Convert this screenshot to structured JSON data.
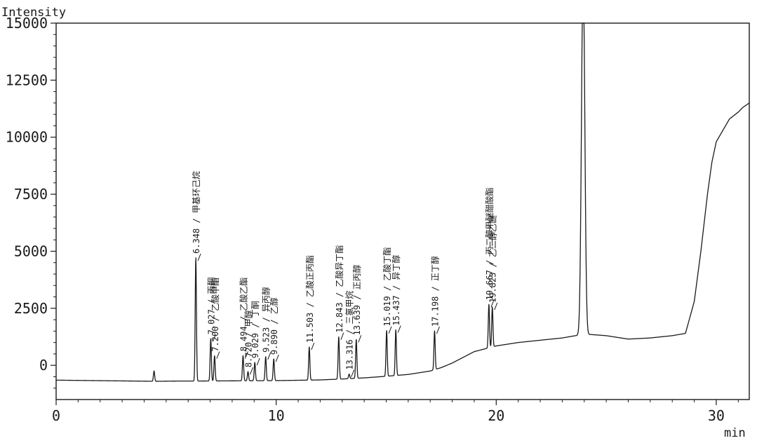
{
  "chart_data": {
    "type": "line",
    "xlabel": "min",
    "ylabel": "Intensity",
    "xlim": [
      0,
      31.5
    ],
    "ylim": [
      -1500,
      15000
    ],
    "x_ticks": [
      0,
      10,
      20,
      30
    ],
    "x_tick_labels": [
      "0",
      "10",
      "20",
      "30"
    ],
    "y_ticks": [
      0,
      2500,
      5000,
      7500,
      10000,
      12500,
      15000
    ],
    "y_tick_labels": [
      "0",
      "2500",
      "5000",
      "7500",
      "10000",
      "12500",
      "15000"
    ],
    "baseline": {
      "x": [
        0,
        4.5,
        5.5,
        6.3,
        8,
        10,
        12,
        13,
        14,
        15,
        16,
        17,
        17.5,
        18,
        18.5,
        19,
        20,
        21,
        22,
        23,
        23.6,
        24.3,
        25,
        26,
        27,
        28,
        28.6,
        29,
        29.3,
        29.6,
        29.8,
        30,
        30.3,
        30.6,
        31,
        31.2,
        31.5
      ],
      "y": [
        -650,
        -700,
        -690,
        -690,
        -680,
        -670,
        -640,
        -600,
        -550,
        -480,
        -400,
        -250,
        -100,
        100,
        350,
        600,
        850,
        1000,
        1100,
        1200,
        1300,
        1350,
        1300,
        1150,
        1200,
        1300,
        1400,
        2800,
        5000,
        7500,
        8900,
        9800,
        10300,
        10800,
        11100,
        11300,
        11500
      ]
    },
    "peaks": [
      {
        "rt": 4.45,
        "height": 450,
        "label": ""
      },
      {
        "rt": 6.348,
        "height": 5400,
        "label": "6.348 / 甲基环己烷"
      },
      {
        "rt": 7.027,
        "height": 1850,
        "label": "7.027 / 丙酮"
      },
      {
        "rt": 7.2,
        "height": 1100,
        "label": "7.200 / 乙酸甲酯"
      },
      {
        "rt": 8.494,
        "height": 1100,
        "label": "8.494 / 乙酸乙酯"
      },
      {
        "rt": 8.72,
        "height": 400,
        "label": "8.720 / 甲醇"
      },
      {
        "rt": 9.029,
        "height": 800,
        "label": "9.029 / 丁酮"
      },
      {
        "rt": 9.523,
        "height": 1050,
        "label": "9.523 / 异丙醇"
      },
      {
        "rt": 9.89,
        "height": 950,
        "label": "9.890 / 乙醇"
      },
      {
        "rt": 11.503,
        "height": 1450,
        "label": "11.503 / 乙酸正丙酯"
      },
      {
        "rt": 12.843,
        "height": 1850,
        "label": "12.843 / 乙酸异丁酯"
      },
      {
        "rt": 13.316,
        "height": 200,
        "label": "13.316 / 三氯甲烷"
      },
      {
        "rt": 13.639,
        "height": 1700,
        "label": "13.639 / 正丙醇"
      },
      {
        "rt": 15.019,
        "height": 2000,
        "label": "15.019 / 乙酸丁酯"
      },
      {
        "rt": 15.437,
        "height": 2000,
        "label": "15.437 / 异丁醇"
      },
      {
        "rt": 17.198,
        "height": 1700,
        "label": "17.198 / 正丁醇"
      },
      {
        "rt": 19.667,
        "height": 1900,
        "label": "19.667 / 丙二醇甲醚醋酸酯"
      },
      {
        "rt": 19.823,
        "height": 1750,
        "label": "19.823 / 乙二醇乙醚"
      },
      {
        "rt": 23.95,
        "height": 16000,
        "label": ""
      }
    ]
  }
}
